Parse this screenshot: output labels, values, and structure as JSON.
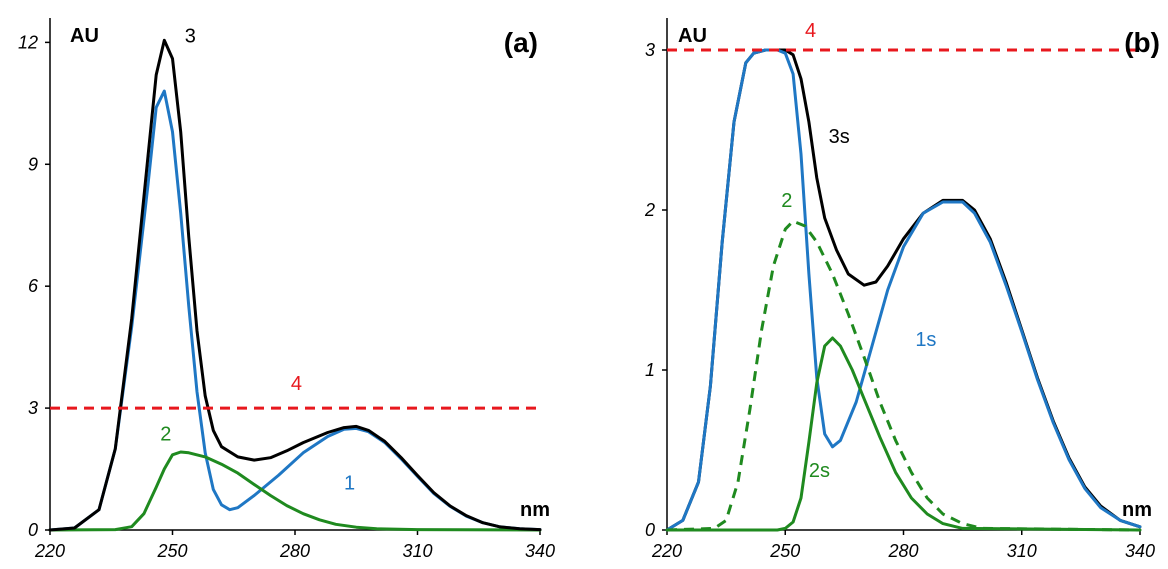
{
  "chart_data": [
    {
      "type": "line",
      "panel_label": "(a)",
      "ylabel": "AU",
      "xlabel": "nm",
      "xlim": [
        220,
        340
      ],
      "ylim": [
        0,
        12.6
      ],
      "xticks": [
        "220",
        "250",
        "280",
        "310",
        "340"
      ],
      "yticks": [
        "0",
        "3",
        "6",
        "9",
        "12"
      ],
      "xtick_values": [
        220,
        250,
        280,
        310,
        340
      ],
      "ytick_values": [
        0,
        3,
        6,
        9,
        12
      ],
      "series": [
        {
          "name": "1",
          "color": "#1f77c4",
          "dashed": false,
          "label_at": [
            292,
            1.0
          ],
          "points": [
            [
              220,
              0
            ],
            [
              226,
              0.05
            ],
            [
              232,
              0.5
            ],
            [
              236,
              2.0
            ],
            [
              240,
              5.0
            ],
            [
              244,
              8.5
            ],
            [
              246,
              10.4
            ],
            [
              248,
              10.8
            ],
            [
              250,
              9.8
            ],
            [
              252,
              7.8
            ],
            [
              254,
              5.5
            ],
            [
              256,
              3.4
            ],
            [
              258,
              1.9
            ],
            [
              260,
              1.0
            ],
            [
              262,
              0.62
            ],
            [
              264,
              0.5
            ],
            [
              266,
              0.55
            ],
            [
              270,
              0.85
            ],
            [
              276,
              1.35
            ],
            [
              282,
              1.9
            ],
            [
              288,
              2.3
            ],
            [
              292,
              2.48
            ],
            [
              295,
              2.5
            ],
            [
              298,
              2.42
            ],
            [
              302,
              2.15
            ],
            [
              306,
              1.75
            ],
            [
              310,
              1.32
            ],
            [
              314,
              0.9
            ],
            [
              318,
              0.58
            ],
            [
              322,
              0.34
            ],
            [
              326,
              0.18
            ],
            [
              330,
              0.08
            ],
            [
              335,
              0.03
            ],
            [
              340,
              0.01
            ]
          ]
        },
        {
          "name": "2",
          "color": "#1f8a1f",
          "dashed": false,
          "label_at": [
            247,
            2.2
          ],
          "points": [
            [
              220,
              0
            ],
            [
              236,
              0.01
            ],
            [
              240,
              0.08
            ],
            [
              243,
              0.4
            ],
            [
              246,
              1.05
            ],
            [
              248,
              1.5
            ],
            [
              250,
              1.85
            ],
            [
              252,
              1.92
            ],
            [
              254,
              1.9
            ],
            [
              258,
              1.8
            ],
            [
              262,
              1.62
            ],
            [
              266,
              1.4
            ],
            [
              270,
              1.12
            ],
            [
              274,
              0.85
            ],
            [
              278,
              0.6
            ],
            [
              282,
              0.4
            ],
            [
              286,
              0.25
            ],
            [
              290,
              0.14
            ],
            [
              295,
              0.07
            ],
            [
              300,
              0.03
            ],
            [
              310,
              0.01
            ],
            [
              340,
              0
            ]
          ]
        },
        {
          "name": "3",
          "color": "#000000",
          "dashed": false,
          "label_at": [
            253,
            12.0
          ],
          "points": [
            [
              220,
              0
            ],
            [
              226,
              0.05
            ],
            [
              232,
              0.5
            ],
            [
              236,
              2.0
            ],
            [
              240,
              5.2
            ],
            [
              244,
              9.2
            ],
            [
              246,
              11.2
            ],
            [
              248,
              12.05
            ],
            [
              250,
              11.6
            ],
            [
              252,
              9.8
            ],
            [
              254,
              7.2
            ],
            [
              256,
              4.9
            ],
            [
              258,
              3.3
            ],
            [
              260,
              2.45
            ],
            [
              262,
              2.05
            ],
            [
              266,
              1.8
            ],
            [
              270,
              1.72
            ],
            [
              274,
              1.78
            ],
            [
              278,
              1.95
            ],
            [
              282,
              2.15
            ],
            [
              288,
              2.4
            ],
            [
              292,
              2.52
            ],
            [
              295,
              2.55
            ],
            [
              298,
              2.45
            ],
            [
              302,
              2.18
            ],
            [
              306,
              1.78
            ],
            [
              310,
              1.34
            ],
            [
              314,
              0.92
            ],
            [
              318,
              0.59
            ],
            [
              322,
              0.35
            ],
            [
              326,
              0.18
            ],
            [
              330,
              0.08
            ],
            [
              335,
              0.03
            ],
            [
              340,
              0.01
            ]
          ]
        },
        {
          "name": "4",
          "color": "#e8181e",
          "dashed": true,
          "label_at": [
            279,
            3.45
          ],
          "points": [
            [
              220,
              3
            ],
            [
              340,
              3
            ]
          ]
        }
      ]
    },
    {
      "type": "line",
      "panel_label": "(b)",
      "ylabel": "AU",
      "xlabel": "nm",
      "xlim": [
        220,
        340
      ],
      "ylim": [
        0,
        3.2
      ],
      "xticks": [
        "220",
        "250",
        "280",
        "310",
        "340"
      ],
      "yticks": [
        "0",
        "1",
        "2",
        "3"
      ],
      "xtick_values": [
        220,
        250,
        280,
        310,
        340
      ],
      "ytick_values": [
        0,
        1,
        2,
        3
      ],
      "series": [
        {
          "name": "3s",
          "color": "#000000",
          "dashed": false,
          "label_at": [
            261,
            2.42
          ],
          "points": [
            [
              220,
              0
            ],
            [
              224,
              0.06
            ],
            [
              228,
              0.3
            ],
            [
              231,
              0.9
            ],
            [
              234,
              1.8
            ],
            [
              237,
              2.55
            ],
            [
              240,
              2.92
            ],
            [
              242,
              2.98
            ],
            [
              245,
              3.0
            ],
            [
              248,
              3.0
            ],
            [
              250,
              3.0
            ],
            [
              252,
              2.97
            ],
            [
              254,
              2.82
            ],
            [
              256,
              2.55
            ],
            [
              258,
              2.2
            ],
            [
              260,
              1.95
            ],
            [
              263,
              1.75
            ],
            [
              266,
              1.6
            ],
            [
              270,
              1.53
            ],
            [
              273,
              1.55
            ],
            [
              276,
              1.65
            ],
            [
              280,
              1.82
            ],
            [
              285,
              1.98
            ],
            [
              290,
              2.06
            ],
            [
              295,
              2.06
            ],
            [
              298,
              2.0
            ],
            [
              302,
              1.82
            ],
            [
              306,
              1.55
            ],
            [
              310,
              1.25
            ],
            [
              314,
              0.95
            ],
            [
              318,
              0.68
            ],
            [
              322,
              0.45
            ],
            [
              326,
              0.27
            ],
            [
              330,
              0.15
            ],
            [
              335,
              0.06
            ],
            [
              340,
              0.02
            ]
          ]
        },
        {
          "name": "1s",
          "color": "#1f77c4",
          "dashed": false,
          "label_at": [
            283,
            1.15
          ],
          "points": [
            [
              220,
              0
            ],
            [
              224,
              0.06
            ],
            [
              228,
              0.3
            ],
            [
              231,
              0.9
            ],
            [
              234,
              1.8
            ],
            [
              237,
              2.55
            ],
            [
              240,
              2.92
            ],
            [
              242,
              2.98
            ],
            [
              245,
              3.0
            ],
            [
              248,
              3.0
            ],
            [
              250,
              2.98
            ],
            [
              252,
              2.85
            ],
            [
              254,
              2.35
            ],
            [
              256,
              1.6
            ],
            [
              258,
              0.95
            ],
            [
              260,
              0.6
            ],
            [
              262,
              0.52
            ],
            [
              264,
              0.56
            ],
            [
              268,
              0.8
            ],
            [
              272,
              1.15
            ],
            [
              276,
              1.5
            ],
            [
              280,
              1.77
            ],
            [
              285,
              1.98
            ],
            [
              290,
              2.05
            ],
            [
              295,
              2.05
            ],
            [
              298,
              1.98
            ],
            [
              302,
              1.8
            ],
            [
              306,
              1.53
            ],
            [
              310,
              1.24
            ],
            [
              314,
              0.94
            ],
            [
              318,
              0.67
            ],
            [
              322,
              0.44
            ],
            [
              326,
              0.26
            ],
            [
              330,
              0.14
            ],
            [
              335,
              0.06
            ],
            [
              340,
              0.02
            ]
          ]
        },
        {
          "name": "2",
          "color": "#1f8a1f",
          "dashed": true,
          "label_at": [
            249,
            2.02
          ],
          "points": [
            [
              220,
              0
            ],
            [
              232,
              0.01
            ],
            [
              235,
              0.06
            ],
            [
              238,
              0.3
            ],
            [
              241,
              0.75
            ],
            [
              244,
              1.25
            ],
            [
              247,
              1.65
            ],
            [
              250,
              1.88
            ],
            [
              252,
              1.93
            ],
            [
              255,
              1.9
            ],
            [
              258,
              1.8
            ],
            [
              262,
              1.6
            ],
            [
              266,
              1.35
            ],
            [
              270,
              1.08
            ],
            [
              274,
              0.8
            ],
            [
              278,
              0.56
            ],
            [
              282,
              0.36
            ],
            [
              286,
              0.2
            ],
            [
              290,
              0.1
            ],
            [
              295,
              0.04
            ],
            [
              300,
              0.01
            ],
            [
              340,
              0
            ]
          ]
        },
        {
          "name": "2s",
          "color": "#1f8a1f",
          "dashed": false,
          "label_at": [
            256,
            0.33
          ],
          "points": [
            [
              220,
              0
            ],
            [
              248,
              0
            ],
            [
              250,
              0.01
            ],
            [
              252,
              0.05
            ],
            [
              254,
              0.2
            ],
            [
              256,
              0.55
            ],
            [
              258,
              0.92
            ],
            [
              260,
              1.15
            ],
            [
              262,
              1.2
            ],
            [
              264,
              1.15
            ],
            [
              267,
              1.0
            ],
            [
              270,
              0.82
            ],
            [
              274,
              0.58
            ],
            [
              278,
              0.36
            ],
            [
              282,
              0.2
            ],
            [
              286,
              0.1
            ],
            [
              290,
              0.04
            ],
            [
              295,
              0.01
            ],
            [
              340,
              0
            ]
          ]
        },
        {
          "name": "4",
          "color": "#e8181e",
          "dashed": true,
          "label_at": [
            255,
            3.08
          ],
          "points": [
            [
              220,
              3
            ],
            [
              340,
              3
            ]
          ]
        }
      ]
    }
  ]
}
